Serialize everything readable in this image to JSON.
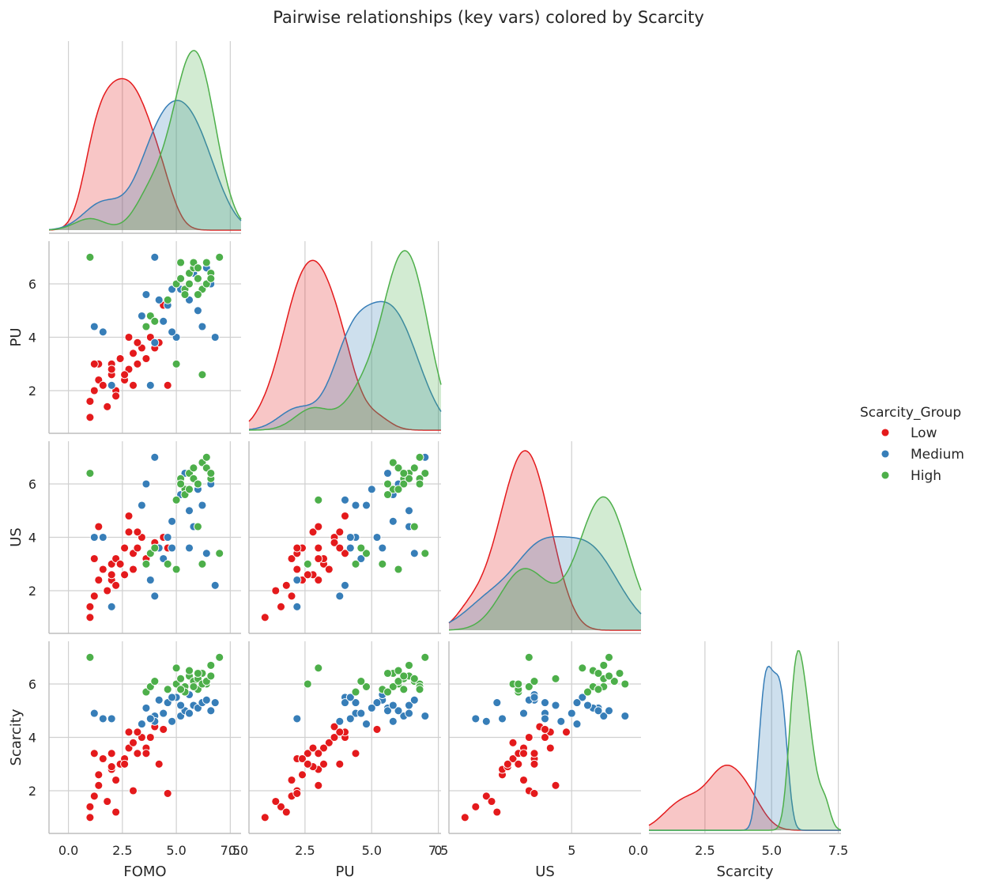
{
  "chart_data": {
    "type": "scatter",
    "title": "Pairwise relationships (key vars) colored by Scarcity",
    "variables": [
      "FOMO",
      "PU",
      "US",
      "Scarcity"
    ],
    "layout": "lower-triangle pairplot; diagonal = KDE per group",
    "legend": {
      "title": "Scarcity_Group",
      "placement": "right",
      "entries": [
        {
          "name": "Low",
          "color": "#e41a1c"
        },
        {
          "name": "Medium",
          "color": "#377eb8"
        },
        {
          "name": "High",
          "color": "#4daf4a"
        }
      ]
    },
    "axes": {
      "FOMO": {
        "label": "FOMO",
        "range": [
          -0.9,
          8.0
        ],
        "ticks": [
          0.0,
          2.5,
          5.0,
          7.5
        ],
        "tick_labels": [
          "0.0",
          "2.5",
          "5.0",
          "7.5"
        ]
      },
      "PU": {
        "label": "PU",
        "range": [
          0.4,
          7.6
        ],
        "ticks": [
          0.0,
          2.5,
          5.0,
          7.5
        ],
        "tick_labels": [
          "0.0",
          "2.5",
          "5.0",
          "7.5"
        ],
        "y_ticks": [
          2,
          4,
          6
        ],
        "y_tick_labels": [
          "2",
          "4",
          "6"
        ]
      },
      "US": {
        "label": "US",
        "range": [
          0.4,
          7.6
        ],
        "ticks": [
          0,
          5
        ],
        "tick_labels": [
          "0",
          "5"
        ],
        "y_ticks": [
          2,
          4,
          6
        ],
        "y_tick_labels": [
          "2",
          "4",
          "6"
        ]
      },
      "Scarcity": {
        "label": "Scarcity",
        "range": [
          0.4,
          7.6
        ],
        "ticks": [
          0.0,
          2.5,
          5.0,
          7.5
        ],
        "tick_labels": [
          "0.0",
          "2.5",
          "5.0",
          "7.5"
        ],
        "y_ticks": [
          2,
          4,
          6
        ],
        "y_tick_labels": [
          "2",
          "4",
          "6"
        ]
      }
    },
    "grid": true,
    "series": [
      {
        "name": "Low",
        "color": "#e41a1c",
        "FOMO": [
          1.0,
          1.0,
          1.2,
          1.4,
          1.6,
          1.8,
          2.0,
          2.0,
          2.2,
          2.4,
          2.6,
          2.8,
          3.0,
          3.0,
          3.2,
          3.4,
          3.6,
          3.8,
          4.0,
          4.2,
          1.4,
          2.2,
          2.8,
          3.6,
          4.6,
          2.0,
          3.2,
          1.2,
          2.6,
          4.4
        ],
        "PU": [
          1.0,
          1.6,
          2.0,
          2.4,
          2.2,
          1.4,
          2.6,
          3.0,
          2.0,
          3.2,
          2.4,
          2.8,
          3.4,
          2.2,
          3.0,
          3.6,
          3.2,
          4.0,
          3.6,
          3.8,
          3.0,
          1.8,
          4.0,
          4.4,
          2.2,
          2.8,
          3.8,
          3.0,
          2.6,
          5.2
        ],
        "US": [
          1.0,
          1.4,
          1.8,
          2.4,
          2.8,
          2.0,
          3.0,
          2.4,
          3.2,
          3.0,
          3.6,
          4.2,
          2.8,
          3.4,
          3.6,
          4.0,
          3.2,
          3.4,
          3.8,
          3.6,
          4.4,
          2.2,
          4.8,
          3.0,
          3.6,
          2.6,
          4.2,
          3.2,
          2.6,
          4.0
        ],
        "Scarcity": [
          1.0,
          1.4,
          1.8,
          2.6,
          3.2,
          1.6,
          3.4,
          2.8,
          2.4,
          3.0,
          3.2,
          3.6,
          3.8,
          2.0,
          3.4,
          4.0,
          3.6,
          4.0,
          4.4,
          3.0,
          2.2,
          1.2,
          4.2,
          3.4,
          1.9,
          2.9,
          4.2,
          3.4,
          3.0,
          4.3
        ]
      },
      {
        "name": "Medium",
        "color": "#377eb8",
        "FOMO": [
          1.2,
          1.6,
          2.0,
          3.4,
          3.6,
          4.0,
          4.2,
          4.4,
          4.6,
          4.8,
          5.0,
          5.2,
          5.4,
          5.6,
          5.8,
          6.0,
          6.2,
          6.4,
          6.6,
          6.8,
          4.0,
          3.8,
          4.8,
          5.2,
          5.6
        ],
        "PU": [
          4.4,
          4.2,
          2.2,
          4.8,
          5.6,
          7.0,
          5.4,
          4.6,
          5.2,
          5.8,
          4.0,
          6.2,
          5.6,
          5.4,
          6.4,
          5.0,
          4.4,
          6.6,
          6.0,
          4.0,
          3.8,
          2.2,
          4.2,
          5.8,
          6.4
        ],
        "US": [
          4.0,
          4.0,
          1.4,
          5.2,
          6.0,
          7.0,
          3.6,
          3.2,
          4.0,
          4.6,
          5.4,
          6.2,
          6.4,
          3.6,
          4.4,
          5.8,
          5.2,
          3.4,
          6.0,
          2.2,
          1.8,
          2.4,
          3.6,
          5.6,
          5.0
        ],
        "Scarcity": [
          4.9,
          4.7,
          4.7,
          4.5,
          5.1,
          4.8,
          5.4,
          4.9,
          5.3,
          4.6,
          5.5,
          4.8,
          5.0,
          5.6,
          5.2,
          5.1,
          5.3,
          5.4,
          5.0,
          5.3,
          4.6,
          4.7,
          5.5,
          5.2,
          4.9
        ]
      },
      {
        "name": "High",
        "color": "#4daf4a",
        "FOMO": [
          1.0,
          3.6,
          3.8,
          4.0,
          4.6,
          5.0,
          5.2,
          5.4,
          5.6,
          5.8,
          6.0,
          6.2,
          6.4,
          6.6,
          7.0,
          5.4,
          5.6,
          5.8,
          6.0,
          6.2,
          6.4,
          5.0,
          6.6,
          5.2,
          6.0
        ],
        "PU": [
          7.0,
          4.4,
          4.8,
          4.6,
          5.4,
          6.0,
          6.2,
          5.8,
          6.4,
          6.6,
          6.2,
          5.8,
          6.8,
          6.4,
          7.0,
          5.6,
          6.0,
          6.8,
          6.6,
          2.6,
          6.0,
          3.0,
          6.2,
          6.8,
          5.6
        ],
        "US": [
          6.4,
          3.0,
          3.4,
          3.6,
          3.0,
          2.8,
          6.2,
          5.8,
          6.4,
          6.6,
          6.0,
          6.8,
          7.0,
          6.2,
          3.4,
          5.6,
          5.8,
          6.2,
          4.4,
          3.0,
          6.6,
          5.4,
          6.4,
          6.0,
          6.0
        ],
        "Scarcity": [
          7.0,
          5.7,
          5.9,
          6.1,
          5.8,
          6.0,
          6.2,
          5.9,
          6.3,
          6.1,
          5.8,
          6.4,
          6.0,
          6.7,
          7.0,
          5.7,
          6.5,
          5.9,
          6.2,
          6.0,
          6.1,
          6.6,
          6.3,
          5.8,
          6.4
        ]
      }
    ]
  }
}
